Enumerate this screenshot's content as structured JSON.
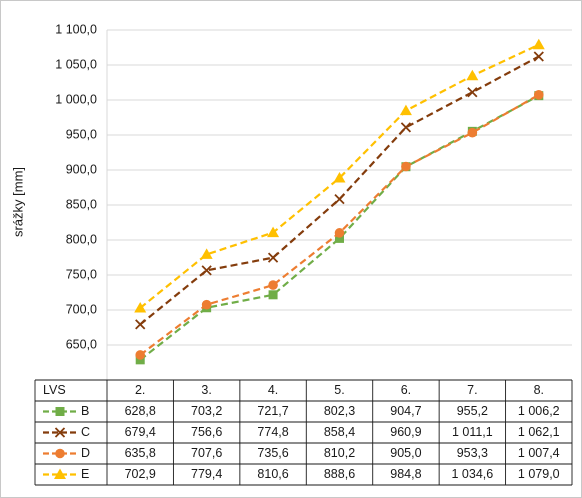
{
  "chart_data": {
    "type": "line",
    "ylabel": "srážky [mm]",
    "ylim": [
      600,
      1100
    ],
    "y_tick_step": 50,
    "y_tick_labels": [
      "1 100,0",
      "1 050,0",
      "1 000,0",
      "950,0",
      "900,0",
      "850,0",
      "800,0",
      "750,0",
      "700,0",
      "650,0"
    ],
    "grid": true,
    "legend": "data-table-below",
    "table_header": "LVS",
    "categories": [
      "2.",
      "3.",
      "4.",
      "5.",
      "6.",
      "7.",
      "8."
    ],
    "series": [
      {
        "name": "B",
        "marker": "square",
        "color": "#70ad47",
        "values": [
          628.8,
          703.2,
          721.7,
          802.3,
          904.7,
          955.2,
          1006.2
        ],
        "labels": [
          "628,8",
          "703,2",
          "721,7",
          "802,3",
          "904,7",
          "955,2",
          "1 006,2"
        ]
      },
      {
        "name": "C",
        "marker": "x",
        "color": "#843c0c",
        "values": [
          679.4,
          756.6,
          774.8,
          858.4,
          960.9,
          1011.1,
          1062.1
        ],
        "labels": [
          "679,4",
          "756,6",
          "774,8",
          "858,4",
          "960,9",
          "1 011,1",
          "1 062,1"
        ]
      },
      {
        "name": "D",
        "marker": "circle",
        "color": "#ed7d31",
        "values": [
          635.8,
          707.6,
          735.6,
          810.2,
          905.0,
          953.3,
          1007.4
        ],
        "labels": [
          "635,8",
          "707,6",
          "735,6",
          "810,2",
          "905,0",
          "953,3",
          "1 007,4"
        ]
      },
      {
        "name": "E",
        "marker": "triangle",
        "color": "#ffc000",
        "values": [
          702.9,
          779.4,
          810.6,
          888.6,
          984.8,
          1034.6,
          1079.0
        ],
        "labels": [
          "702,9",
          "779,4",
          "810,6",
          "888,6",
          "984,8",
          "1 034,6",
          "1 079,0"
        ]
      }
    ]
  }
}
